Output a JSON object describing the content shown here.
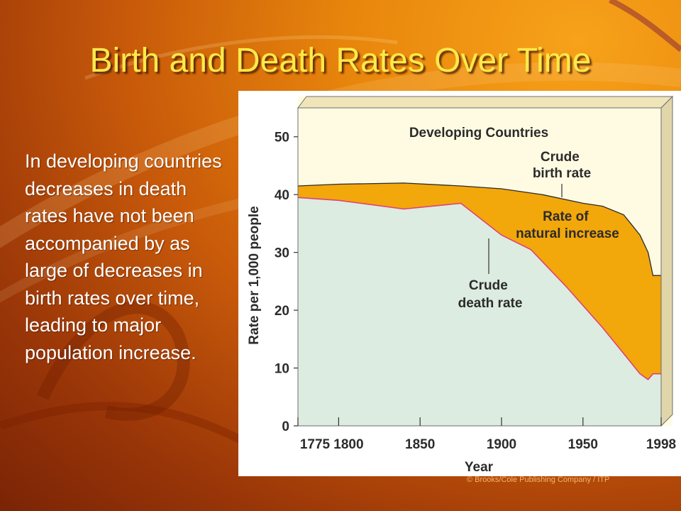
{
  "slide": {
    "title": "Birth and Death Rates Over Time",
    "body": "In developing countries decreases in death rates have not been accompanied by as large of decreases in birth rates over time, leading to major population increase.",
    "copyright": "© Brooks/Cole Publishing Company / ITP"
  },
  "colors": {
    "title": "#ffe94a",
    "birth_zone": "#fffbe3",
    "natural_increase": "#f2a70b",
    "death_zone": "#dcece0",
    "death_line": "#e0407a"
  },
  "chart_data": {
    "type": "area",
    "title": "Developing Countries",
    "xlabel": "Year",
    "ylabel": "Rate per 1,000 people",
    "xlim": [
      1775,
      1998
    ],
    "ylim": [
      0,
      55
    ],
    "xticks": [
      "1775",
      "1800",
      "1850",
      "1900",
      "1950",
      "1998"
    ],
    "xtick_values": [
      1775,
      1800,
      1850,
      1900,
      1950,
      1998
    ],
    "yticks": [
      0,
      10,
      20,
      30,
      40,
      50
    ],
    "series": [
      {
        "name": "Crude birth rate",
        "x": [
          1775,
          1800,
          1840,
          1875,
          1900,
          1925,
          1950,
          1962,
          1975,
          1985,
          1990,
          1993,
          1998
        ],
        "values": [
          41.5,
          41.8,
          42,
          41.5,
          41,
          40,
          38.5,
          38,
          36.5,
          33,
          30,
          26,
          26
        ]
      },
      {
        "name": "Crude death rate",
        "x": [
          1775,
          1800,
          1840,
          1875,
          1900,
          1918,
          1940,
          1962,
          1975,
          1985,
          1990,
          1993,
          1998
        ],
        "values": [
          39.5,
          39,
          37.5,
          38.5,
          33,
          30.5,
          24,
          17,
          12.5,
          9,
          8,
          9,
          9
        ]
      }
    ],
    "annotations": [
      {
        "text": "Developing Countries",
        "x": 1865,
        "y": 50.5
      },
      {
        "text": "Crude\nbirth rate",
        "x": 1936,
        "y": 48.5
      },
      {
        "text": "Rate of\nnatural increase",
        "x": 1935,
        "y": 36
      },
      {
        "text": "Crude\ndeath rate",
        "x": 1887,
        "y": 23.5
      }
    ]
  }
}
